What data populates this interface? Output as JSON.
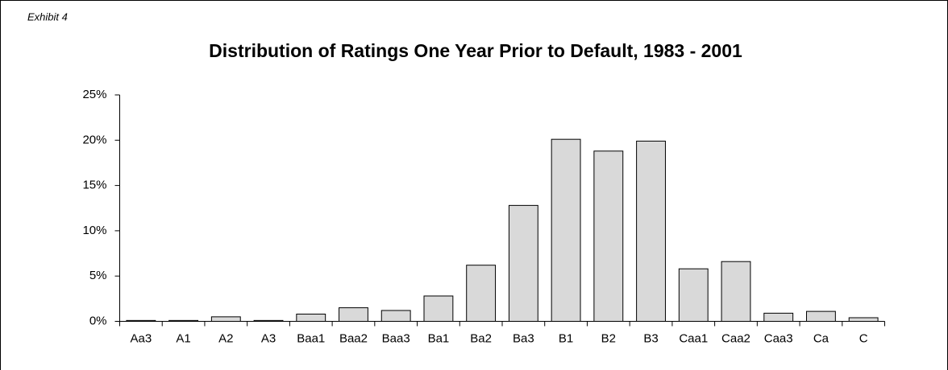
{
  "chart_data": {
    "type": "bar",
    "exhibit": "Exhibit 4",
    "title": "Distribution of Ratings One Year Prior to Default, 1983 - 2001",
    "categories": [
      "Aa3",
      "A1",
      "A2",
      "A3",
      "Baa1",
      "Baa2",
      "Baa3",
      "Ba1",
      "Ba2",
      "Ba3",
      "B1",
      "B2",
      "B3",
      "Caa1",
      "Caa2",
      "Caa3",
      "Ca",
      "C"
    ],
    "values": [
      0.1,
      0.1,
      0.5,
      0.1,
      0.8,
      1.5,
      1.2,
      2.8,
      6.2,
      12.8,
      20.1,
      18.8,
      19.9,
      5.8,
      6.6,
      0.9,
      1.1,
      0.4
    ],
    "color": "#d9d9d9",
    "ylim": [
      0,
      25
    ],
    "yticks": [
      {
        "value": 0,
        "label": "0%"
      },
      {
        "value": 5,
        "label": "5%"
      },
      {
        "value": 10,
        "label": "10%"
      },
      {
        "value": 15,
        "label": "15%"
      },
      {
        "value": 20,
        "label": "20%"
      },
      {
        "value": 25,
        "label": "25%"
      }
    ],
    "grid": false
  }
}
